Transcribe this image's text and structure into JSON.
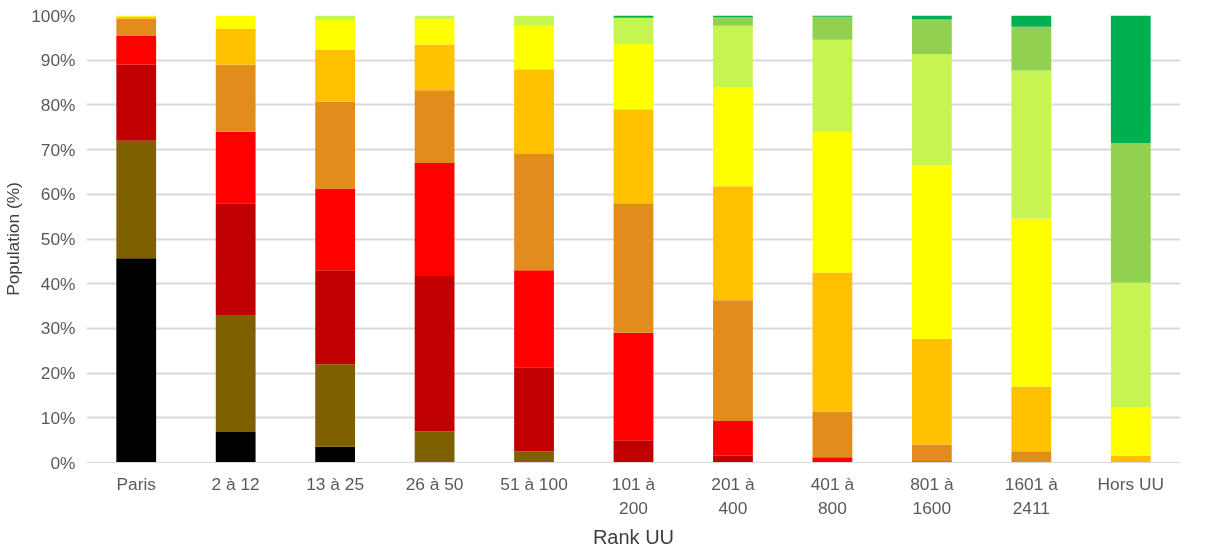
{
  "chart_data": {
    "type": "bar",
    "stacked": true,
    "xlabel": "Rank UU",
    "ylabel": "Population (%)",
    "categories": [
      "Paris",
      "2 à 12",
      "13 à 25",
      "26 à 50",
      "51 à 100",
      "101 à 200",
      "201 à 400",
      "401 à 800",
      "801 à 1600",
      "1601 à 2411",
      "Hors UU"
    ],
    "series": [
      {
        "color": "#000000",
        "values": [
          45.7,
          6.8,
          3.5,
          null,
          null,
          null,
          null,
          null,
          null,
          null,
          null
        ]
      },
      {
        "color": "#7f6000",
        "values": [
          26.3,
          26.2,
          18.5,
          7,
          2.5,
          null,
          null,
          null,
          null,
          null,
          null
        ]
      },
      {
        "color": "#c00000",
        "values": [
          17,
          25,
          21,
          34.7,
          18.8,
          5,
          1.5,
          null,
          null,
          null,
          null
        ]
      },
      {
        "color": "#ff0000",
        "values": [
          6.5,
          16,
          18.3,
          25.3,
          21.7,
          24,
          7.8,
          1.2,
          0.3,
          null,
          null
        ]
      },
      {
        "color": "#e38c1e",
        "values": [
          3.8,
          15,
          19.4,
          16.3,
          26,
          29,
          27,
          10.2,
          3.7,
          2.5,
          null
        ]
      },
      {
        "color": "#ffc000",
        "values": [
          0.4,
          8,
          11.6,
          10.2,
          19,
          21,
          25.5,
          31.1,
          23.7,
          14.5,
          1.5
        ]
      },
      {
        "color": "#ffff00",
        "values": [
          0.3,
          3,
          6.7,
          5.8,
          9.7,
          14.6,
          22.2,
          31.5,
          38.8,
          37.6,
          10.9
        ]
      },
      {
        "color": "#c6f552",
        "values": [
          null,
          null,
          1,
          0.7,
          2.3,
          5.9,
          13.7,
          20.6,
          24.9,
          33.1,
          27.8
        ]
      },
      {
        "color": "#92d050",
        "values": [
          null,
          null,
          null,
          null,
          null,
          null,
          1.9,
          5.1,
          7.7,
          9.8,
          31.2
        ]
      },
      {
        "color": "#00b050",
        "values": [
          null,
          null,
          null,
          null,
          null,
          0.5,
          0.4,
          0.3,
          0.9,
          2.5,
          28.6
        ]
      }
    ],
    "ylim": [
      0,
      100
    ],
    "yticks": [
      {
        "value": 0,
        "label": "0%"
      },
      {
        "value": 10,
        "label": "10%"
      },
      {
        "value": 20,
        "label": "20%"
      },
      {
        "value": 30,
        "label": "30%"
      },
      {
        "value": 40,
        "label": "40%"
      },
      {
        "value": 50,
        "label": "50%"
      },
      {
        "value": 60,
        "label": "60%"
      },
      {
        "value": 70,
        "label": "70%"
      },
      {
        "value": 80,
        "label": "80%"
      },
      {
        "value": 90,
        "label": "90%"
      },
      {
        "value": 100,
        "label": "100%"
      }
    ],
    "grid": "y"
  }
}
